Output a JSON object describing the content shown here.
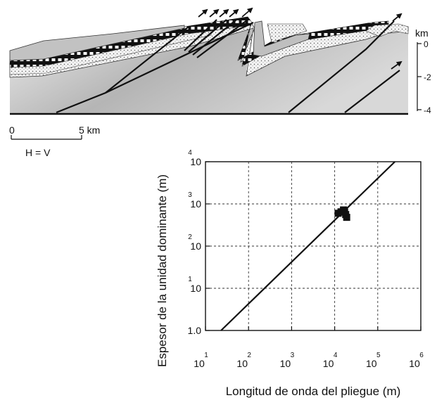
{
  "cross_section": {
    "depth_axis": {
      "unit": "km",
      "ticks": [
        {
          "label": "0",
          "value": 0
        },
        {
          "label": "-2",
          "value": -2
        },
        {
          "label": "-4",
          "value": -4
        }
      ]
    },
    "scale_bar": {
      "start_label": "0",
      "end_label": "5 km",
      "ratio_label": "H = V"
    },
    "colors": {
      "basement": "#a9a9a9",
      "basement_light": "#e6e6e6",
      "sandstone": "#f2f2f2",
      "upper_unit": "#c8c8c8",
      "fault": "#111111"
    }
  },
  "chart_data": {
    "type": "scatter",
    "xlabel": "Longitud de onda del pliegue (m)",
    "ylabel": "Espesor de la unidad dominante (m)",
    "x_scale": "log",
    "y_scale": "log",
    "xlim": [
      10,
      1000000
    ],
    "ylim": [
      1,
      10000
    ],
    "grid": true,
    "x_ticks": [
      {
        "base": "10",
        "exp": "1",
        "value": 10
      },
      {
        "base": "10",
        "exp": "2",
        "value": 100
      },
      {
        "base": "10",
        "exp": "3",
        "value": 1000
      },
      {
        "base": "10",
        "exp": "4",
        "value": 10000
      },
      {
        "base": "10",
        "exp": "5",
        "value": 100000
      },
      {
        "base": "10",
        "exp": "6",
        "value": 1000000
      }
    ],
    "y_ticks": [
      {
        "base": "1.0",
        "exp": "",
        "value": 1
      },
      {
        "base": "10",
        "exp": "1",
        "value": 10
      },
      {
        "base": "10",
        "exp": "2",
        "value": 100
      },
      {
        "base": "10",
        "exp": "3",
        "value": 1000
      },
      {
        "base": "10",
        "exp": "4",
        "value": 10000
      }
    ],
    "trend_line": {
      "x": [
        23,
        250000
      ],
      "y": [
        1,
        10000
      ]
    },
    "points": [
      {
        "x": 12000,
        "y": 600
      },
      {
        "x": 14000,
        "y": 650
      },
      {
        "x": 16000,
        "y": 720
      },
      {
        "x": 18000,
        "y": 560
      },
      {
        "x": 19000,
        "y": 480
      },
      {
        "x": 17000,
        "y": 640
      }
    ],
    "colors": {
      "line": "#111111",
      "marker": "#111111",
      "grid": "#333333"
    }
  }
}
